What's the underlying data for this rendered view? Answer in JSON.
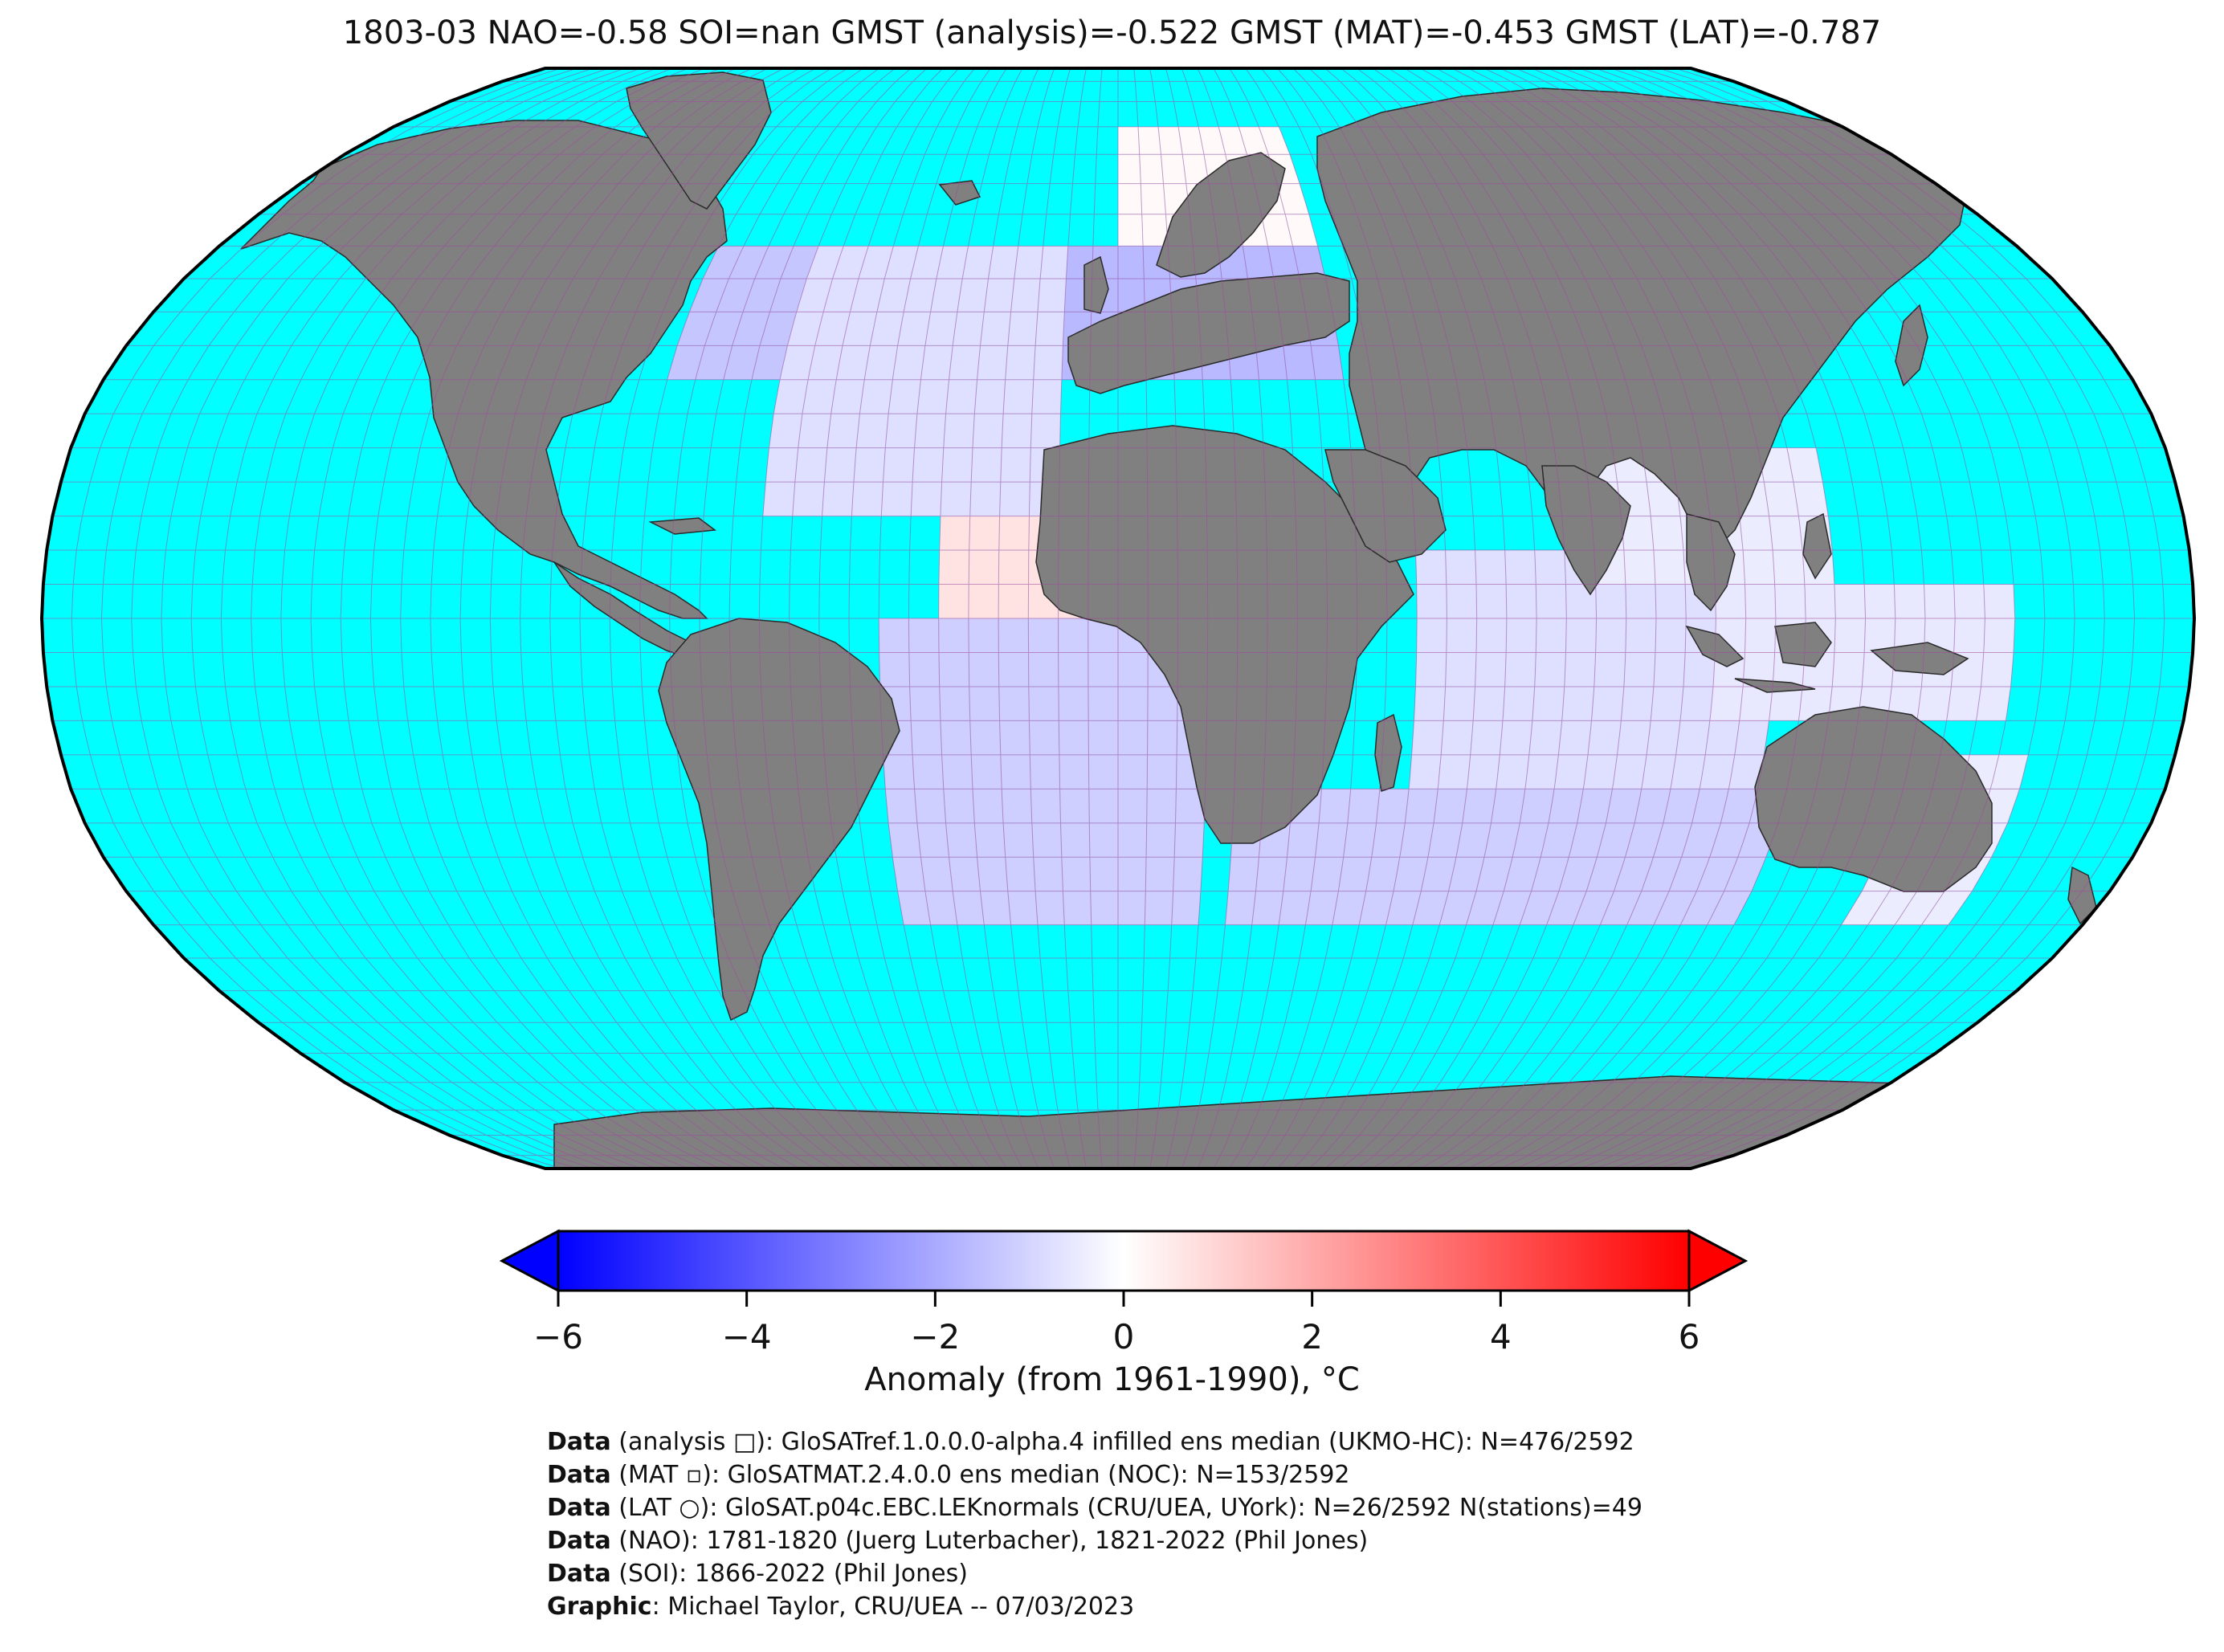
{
  "title": "1803-03 NAO=-0.58 SOI=nan GMST (analysis)=-0.522 GMST (MAT)=-0.453 GMST (LAT)=-0.787",
  "colors": {
    "ocean": "#00ffff",
    "land": "#808080",
    "cmap_low": "#0000ff",
    "cmap_mid": "#ffffff",
    "cmap_high": "#ff0000",
    "grid": "#a04aa0"
  },
  "colorbar": {
    "label": "Anomaly (from 1961-1990), °C",
    "min": -6,
    "max": 6,
    "ticks": [
      "−6",
      "−4",
      "−2",
      "0",
      "2",
      "4",
      "6"
    ],
    "extend": "both"
  },
  "credits": [
    {
      "bold": "Data",
      "text": " (analysis □): GloSATref.1.0.0.0-alpha.4 infilled ens median (UKMO-HC): N=476/2592"
    },
    {
      "bold": "Data",
      "text": " (MAT ▫): GloSATMAT.2.4.0.0 ens median (NOC): N=153/2592"
    },
    {
      "bold": "Data",
      "text": " (LAT ○): GloSAT.p04c.EBC.LEKnormals (CRU/UEA, UYork): N=26/2592 N(stations)=49"
    },
    {
      "bold": "Data",
      "text": " (NAO): 1781-1820 (Juerg Luterbacher), 1821-2022 (Phil Jones)"
    },
    {
      "bold": "Data",
      "text": " (SOI): 1866-2022 (Phil Jones)"
    },
    {
      "bold": "Graphic",
      "text": ": Michael Taylor, CRU/UEA -- 07/03/2023"
    }
  ],
  "chart_data": {
    "type": "heatmap",
    "projection": "Robinson",
    "grid_resolution_deg": 5,
    "colorbar_range": [
      -6,
      6
    ],
    "anomaly_cells": [
      {
        "region": "Western North Atlantic / NE North America",
        "value": -1.2
      },
      {
        "region": "Europe / Mediterranean",
        "value": -1.5
      },
      {
        "region": "Scandinavia",
        "value": 0.3
      },
      {
        "region": "Central North Atlantic",
        "value": -0.6
      },
      {
        "region": "Tropical East Atlantic (off West Africa)",
        "value": 0.8
      },
      {
        "region": "South Atlantic",
        "value": -1.0
      },
      {
        "region": "Indian Ocean",
        "value": -0.6
      },
      {
        "region": "Southern Indian Ocean",
        "value": -1.0
      },
      {
        "region": "Bay of Bengal / South China Sea",
        "value": -0.3
      },
      {
        "region": "Maritime Continent",
        "value": -0.4
      },
      {
        "region": "Eastern Australia",
        "value": -0.3
      }
    ]
  }
}
